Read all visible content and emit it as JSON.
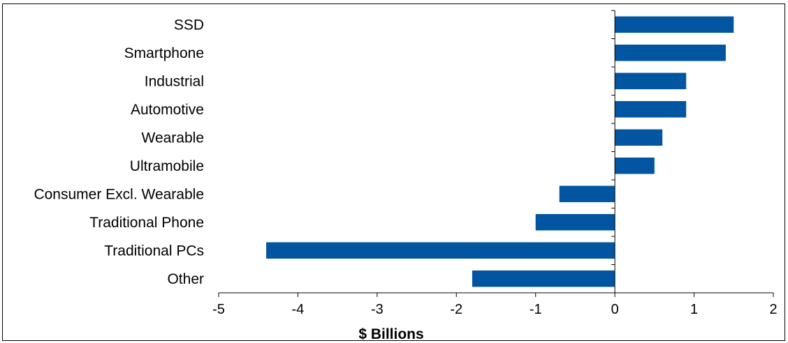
{
  "chart_data": {
    "type": "bar",
    "orientation": "horizontal",
    "categories": [
      "SSD",
      "Smartphone",
      "Industrial",
      "Automotive",
      "Wearable",
      "Ultramobile",
      "Consumer Excl. Wearable",
      "Traditional Phone",
      "Traditional PCs",
      "Other"
    ],
    "values": [
      1.5,
      1.4,
      0.9,
      0.9,
      0.6,
      0.5,
      -0.7,
      -1.0,
      -4.4,
      -1.8
    ],
    "title": "",
    "xlabel": "$ Billions",
    "ylabel": "",
    "xlim": [
      -5,
      2
    ],
    "xticks": [
      -5,
      -4,
      -3,
      -2,
      -1,
      0,
      1,
      2
    ],
    "grid": false,
    "legend": "none",
    "bar_color": "#0255A0"
  }
}
